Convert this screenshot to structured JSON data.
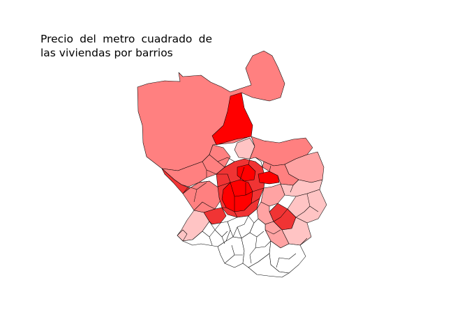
{
  "title": {
    "line1": "Precio del metro cuadrado de",
    "line2": "las viviendas por barrios"
  },
  "legend_colors": {
    "highest": "#ff0000",
    "high": "#f03434",
    "upper_mid": "#ff8080",
    "mid": "#ffa3a3",
    "low": "#ffc4c4",
    "lowest": "#ffffff",
    "border": "#000000"
  }
}
